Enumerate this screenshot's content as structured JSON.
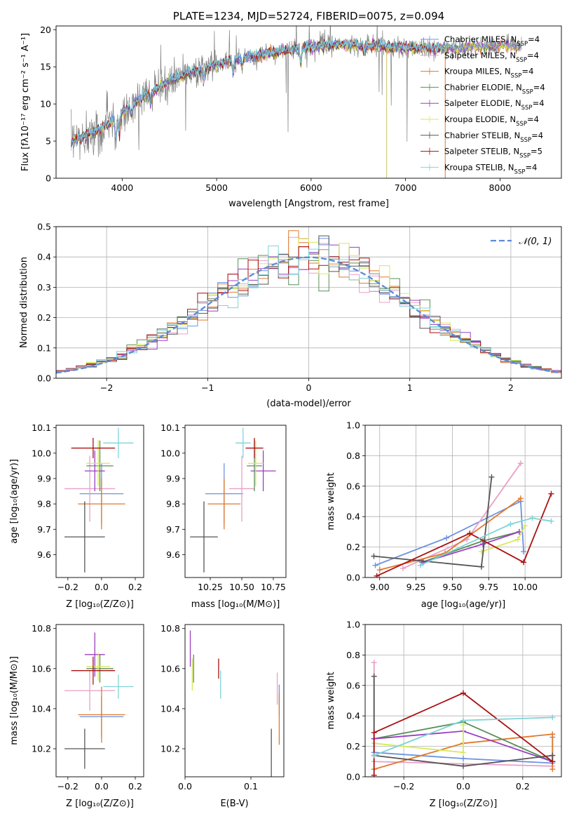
{
  "colors": {
    "Chabrier MILES": "#6f93e0",
    "Salpeter MILES": "#e8a0c8",
    "Kroupa MILES": "#e07a2a",
    "Chabrier ELODIE": "#5a8f5a",
    "Salpeter ELODIE": "#9b3fbf",
    "Kroupa ELODIE": "#d8e85a",
    "Chabrier STELIB": "#555555",
    "Salpeter STELIB": "#aa1111",
    "Kroupa STELIB": "#7fd4d8"
  },
  "chart_data": [
    {
      "id": "spectrum",
      "type": "line",
      "title": "PLATE=1234, MJD=52724, FIBERID=0075, z=0.094",
      "xlabel": "wavelength [Angstrom, rest frame]",
      "ylabel": "Flux [fλ10⁻¹⁷ erg cm⁻² s⁻¹ A⁻¹]",
      "xlim": [
        3300,
        8650
      ],
      "ylim": [
        0,
        20.5
      ],
      "xticks": [
        4000,
        5000,
        6000,
        7000,
        8000
      ],
      "yticks": [
        0,
        5,
        10,
        15,
        20
      ],
      "grid": false,
      "legend_position": "top-right",
      "legend": [
        {
          "model": "Chabrier MILES",
          "nssp": "4"
        },
        {
          "model": "Salpeter MILES",
          "nssp": "4"
        },
        {
          "model": "Kroupa MILES",
          "nssp": "4"
        },
        {
          "model": "Chabrier ELODIE",
          "nssp": "4"
        },
        {
          "model": "Salpeter ELODIE",
          "nssp": "4"
        },
        {
          "model": "Kroupa ELODIE",
          "nssp": "4"
        },
        {
          "model": "Chabrier STELIB",
          "nssp": "4"
        },
        {
          "model": "Salpeter STELIB",
          "nssp": "5"
        },
        {
          "model": "Kroupa STELIB",
          "nssp": "4"
        }
      ],
      "continuum": [
        [
          3450,
          4.8
        ],
        [
          3550,
          5.4
        ],
        [
          3650,
          6.0
        ],
        [
          3750,
          6.6
        ],
        [
          3850,
          7.3
        ],
        [
          3950,
          8.2
        ],
        [
          4050,
          9.3
        ],
        [
          4150,
          10.3
        ],
        [
          4250,
          11.1
        ],
        [
          4350,
          11.9
        ],
        [
          4450,
          12.7
        ],
        [
          4550,
          13.4
        ],
        [
          4700,
          14.2
        ],
        [
          4850,
          14.7
        ],
        [
          5000,
          15.3
        ],
        [
          5150,
          15.9
        ],
        [
          5300,
          16.2
        ],
        [
          5500,
          16.7
        ],
        [
          5700,
          17.1
        ],
        [
          5900,
          17.5
        ],
        [
          6100,
          17.8
        ],
        [
          6300,
          18.0
        ],
        [
          6500,
          17.9
        ],
        [
          6700,
          17.8
        ],
        [
          6900,
          17.6
        ],
        [
          7100,
          17.6
        ],
        [
          7300,
          17.5
        ],
        [
          7500,
          17.5
        ],
        [
          7700,
          17.7
        ],
        [
          7900,
          17.8
        ],
        [
          8100,
          17.9
        ],
        [
          8200,
          17.9
        ]
      ]
    },
    {
      "id": "residuals",
      "type": "histogram",
      "xlabel": "(data-model)/error",
      "ylabel": "Normed distribution",
      "xlim": [
        -2.5,
        2.5
      ],
      "ylim": [
        0,
        0.5
      ],
      "xticks": [
        -2,
        -1,
        0,
        1,
        2
      ],
      "yticks": [
        0.0,
        0.1,
        0.2,
        0.3,
        0.4,
        0.5
      ],
      "grid": true,
      "legend_position": "top-right",
      "legend_label": "𝒩(0, 1)",
      "bin_width": 0.1
    },
    {
      "id": "age-vs-Z",
      "type": "errorbar",
      "xlabel": "Z [log₁₀(Z/Z⊙)]",
      "ylabel": "age  [log₁₀(age/yr)]",
      "xlim": [
        -0.27,
        0.25
      ],
      "ylim": [
        9.51,
        10.11
      ],
      "xticks": [
        -0.2,
        0.0,
        0.2
      ],
      "yticks": [
        9.6,
        9.7,
        9.8,
        9.9,
        10.0,
        10.1
      ],
      "points": [
        {
          "model": "Chabrier MILES",
          "x": 0.0,
          "xerr": 0.13,
          "y": 9.84,
          "yerr": 0.12
        },
        {
          "model": "Salpeter MILES",
          "x": -0.07,
          "xerr": 0.15,
          "y": 9.86,
          "yerr": 0.13
        },
        {
          "model": "Kroupa MILES",
          "x": 0.0,
          "xerr": 0.14,
          "y": 9.8,
          "yerr": 0.1
        },
        {
          "model": "Chabrier ELODIE",
          "x": -0.01,
          "xerr": 0.08,
          "y": 9.95,
          "yerr": 0.1
        },
        {
          "model": "Salpeter ELODIE",
          "x": -0.04,
          "xerr": 0.06,
          "y": 9.93,
          "yerr": 0.08
        },
        {
          "model": "Kroupa ELODIE",
          "x": -0.02,
          "xerr": 0.07,
          "y": 9.96,
          "yerr": 0.09
        },
        {
          "model": "Chabrier STELIB",
          "x": -0.1,
          "xerr": 0.12,
          "y": 9.67,
          "yerr": 0.14
        },
        {
          "model": "Salpeter STELIB",
          "x": -0.05,
          "xerr": 0.13,
          "y": 10.02,
          "yerr": 0.04
        },
        {
          "model": "Kroupa STELIB",
          "x": 0.1,
          "xerr": 0.09,
          "y": 10.04,
          "yerr": 0.06
        }
      ]
    },
    {
      "id": "age-vs-mass",
      "type": "errorbar",
      "xlabel": "mass [log₁₀(M/M⊙)]",
      "ylabel": "",
      "xlim": [
        10.05,
        10.85
      ],
      "ylim": [
        9.51,
        10.11
      ],
      "xticks": [
        10.25,
        10.5,
        10.75
      ],
      "yticks": [
        9.6,
        9.7,
        9.8,
        9.9,
        10.0,
        10.1
      ],
      "points": [
        {
          "model": "Chabrier MILES",
          "x": 10.36,
          "xerr": 0.15,
          "y": 9.84,
          "yerr": 0.12
        },
        {
          "model": "Salpeter MILES",
          "x": 10.5,
          "xerr": 0.1,
          "y": 9.86,
          "yerr": 0.13
        },
        {
          "model": "Kroupa MILES",
          "x": 10.36,
          "xerr": 0.13,
          "y": 9.8,
          "yerr": 0.1
        },
        {
          "model": "Chabrier ELODIE",
          "x": 10.6,
          "xerr": 0.06,
          "y": 9.95,
          "yerr": 0.1
        },
        {
          "model": "Salpeter ELODIE",
          "x": 10.67,
          "xerr": 0.1,
          "y": 9.93,
          "yerr": 0.08
        },
        {
          "model": "Kroupa ELODIE",
          "x": 10.61,
          "xerr": 0.06,
          "y": 9.96,
          "yerr": 0.09
        },
        {
          "model": "Chabrier STELIB",
          "x": 10.2,
          "xerr": 0.11,
          "y": 9.67,
          "yerr": 0.14
        },
        {
          "model": "Salpeter STELIB",
          "x": 10.6,
          "xerr": 0.07,
          "y": 10.02,
          "yerr": 0.04
        },
        {
          "model": "Kroupa STELIB",
          "x": 10.51,
          "xerr": 0.06,
          "y": 10.04,
          "yerr": 0.06
        }
      ]
    },
    {
      "id": "weight-vs-age",
      "type": "line",
      "xlabel": "age  [log₁₀(age/yr)]",
      "ylabel": "mass weight",
      "xlim": [
        8.9,
        10.25
      ],
      "ylim": [
        0,
        1.0
      ],
      "xticks": [
        9.0,
        9.25,
        9.5,
        9.75,
        10.0
      ],
      "yticks": [
        0.0,
        0.2,
        0.4,
        0.6,
        0.8,
        1.0
      ],
      "grid": true,
      "series": [
        {
          "model": "Chabrier MILES",
          "x": [
            8.97,
            9.46,
            9.97,
            9.99
          ],
          "y": [
            0.08,
            0.26,
            0.5,
            0.17
          ]
        },
        {
          "model": "Salpeter MILES",
          "x": [
            9.16,
            9.6,
            9.97
          ],
          "y": [
            0.06,
            0.25,
            0.75
          ]
        },
        {
          "model": "Kroupa MILES",
          "x": [
            9.0,
            9.45,
            9.97
          ],
          "y": [
            0.05,
            0.16,
            0.52
          ]
        },
        {
          "model": "Chabrier ELODIE",
          "x": [
            9.29,
            9.71,
            9.96
          ],
          "y": [
            0.1,
            0.24,
            0.3
          ]
        },
        {
          "model": "Salpeter ELODIE",
          "x": [
            9.3,
            9.71,
            9.96
          ],
          "y": [
            0.1,
            0.22,
            0.3
          ]
        },
        {
          "model": "Kroupa ELODIE",
          "x": [
            9.7,
            9.95,
            10.0
          ],
          "y": [
            0.17,
            0.25,
            0.34
          ]
        },
        {
          "model": "Chabrier STELIB",
          "x": [
            8.96,
            9.7,
            9.77
          ],
          "y": [
            0.14,
            0.07,
            0.66
          ]
        },
        {
          "model": "Salpeter STELIB",
          "x": [
            8.98,
            9.62,
            9.99,
            10.18
          ],
          "y": [
            0.01,
            0.29,
            0.1,
            0.55
          ]
        },
        {
          "model": "Kroupa STELIB",
          "x": [
            9.28,
            9.9,
            10.05,
            10.18
          ],
          "y": [
            0.08,
            0.35,
            0.39,
            0.37
          ]
        }
      ]
    },
    {
      "id": "mass-vs-Z",
      "type": "errorbar",
      "xlabel": "Z [log₁₀(Z/Z⊙)]",
      "ylabel": "mass [log₁₀(M/M⊙)]",
      "xlim": [
        -0.27,
        0.25
      ],
      "ylim": [
        10.06,
        10.82
      ],
      "xticks": [
        -0.2,
        0.0,
        0.2
      ],
      "yticks": [
        10.2,
        10.4,
        10.6,
        10.8
      ],
      "points": [
        {
          "model": "Chabrier MILES",
          "x": 0.0,
          "xerr": 0.13,
          "y": 10.36,
          "yerr": 0.1
        },
        {
          "model": "Salpeter MILES",
          "x": -0.07,
          "xerr": 0.15,
          "y": 10.49,
          "yerr": 0.1
        },
        {
          "model": "Kroupa MILES",
          "x": 0.0,
          "xerr": 0.14,
          "y": 10.37,
          "yerr": 0.14
        },
        {
          "model": "Chabrier ELODIE",
          "x": -0.01,
          "xerr": 0.08,
          "y": 10.6,
          "yerr": 0.07
        },
        {
          "model": "Salpeter ELODIE",
          "x": -0.04,
          "xerr": 0.06,
          "y": 10.67,
          "yerr": 0.11
        },
        {
          "model": "Kroupa ELODIE",
          "x": -0.02,
          "xerr": 0.07,
          "y": 10.61,
          "yerr": 0.07
        },
        {
          "model": "Chabrier STELIB",
          "x": -0.1,
          "xerr": 0.12,
          "y": 10.2,
          "yerr": 0.1
        },
        {
          "model": "Salpeter STELIB",
          "x": -0.05,
          "xerr": 0.13,
          "y": 10.59,
          "yerr": 0.07
        },
        {
          "model": "Kroupa STELIB",
          "x": 0.1,
          "xerr": 0.09,
          "y": 10.51,
          "yerr": 0.06
        }
      ]
    },
    {
      "id": "mass-vs-ebv",
      "type": "errorbar",
      "xlabel": "E(B-V)",
      "ylabel": "",
      "xlim": [
        0,
        0.15
      ],
      "ylim": [
        10.06,
        10.82
      ],
      "xticks": [
        0.0,
        0.1
      ],
      "yticks": [
        10.2,
        10.4,
        10.6,
        10.8
      ],
      "points": [
        {
          "model": "Chabrier MILES",
          "x": 0.143,
          "y": 10.44,
          "yerr": 0.08
        },
        {
          "model": "Salpeter MILES",
          "x": 0.14,
          "y": 10.5,
          "yerr": 0.08
        },
        {
          "model": "Kroupa MILES",
          "x": 0.143,
          "y": 10.35,
          "yerr": 0.13
        },
        {
          "model": "Chabrier ELODIE",
          "x": 0.013,
          "y": 10.6,
          "yerr": 0.07
        },
        {
          "model": "Salpeter ELODIE",
          "x": 0.008,
          "y": 10.7,
          "yerr": 0.09
        },
        {
          "model": "Kroupa ELODIE",
          "x": 0.011,
          "y": 10.57,
          "yerr": 0.08
        },
        {
          "model": "Chabrier STELIB",
          "x": 0.131,
          "y": 10.16,
          "yerr": 0.14
        },
        {
          "model": "Salpeter STELIB",
          "x": 0.051,
          "y": 10.6,
          "yerr": 0.05
        },
        {
          "model": "Kroupa STELIB",
          "x": 0.054,
          "y": 10.52,
          "yerr": 0.07
        }
      ]
    },
    {
      "id": "weight-vs-Z",
      "type": "line",
      "xlabel": "Z [log₁₀(Z/Z⊙)]",
      "ylabel": "mass weight",
      "xlim": [
        -0.33,
        0.33
      ],
      "ylim": [
        0,
        1.0
      ],
      "xticks": [
        -0.2,
        0.0,
        0.2
      ],
      "yticks": [
        0.0,
        0.2,
        0.4,
        0.6,
        0.8,
        1.0
      ],
      "grid": true,
      "series": [
        {
          "model": "Chabrier MILES",
          "x": [
            -0.3,
            0.0,
            0.3,
            0.3
          ],
          "y": [
            0.16,
            0.12,
            0.09,
            0.26
          ]
        },
        {
          "model": "Salpeter MILES",
          "x": [
            -0.3,
            -0.3,
            0.3
          ],
          "y": [
            0.75,
            0.1,
            0.07
          ]
        },
        {
          "model": "Kroupa MILES",
          "x": [
            -0.3,
            0.0,
            0.3,
            0.3
          ],
          "y": [
            0.05,
            0.22,
            0.28,
            0.05
          ]
        },
        {
          "model": "Chabrier ELODIE",
          "x": [
            -0.3,
            0.0,
            0.3
          ],
          "y": [
            0.25,
            0.36,
            0.1
          ]
        },
        {
          "model": "Salpeter ELODIE",
          "x": [
            -0.3,
            0.0,
            0.3
          ],
          "y": [
            0.25,
            0.3,
            0.1
          ]
        },
        {
          "model": "Kroupa ELODIE",
          "x": [
            -0.3,
            0.0,
            0.0
          ],
          "y": [
            0.22,
            0.16,
            0.34
          ]
        },
        {
          "model": "Chabrier STELIB",
          "x": [
            -0.3,
            -0.3,
            0.0,
            0.3,
            0.3
          ],
          "y": [
            0.66,
            0.14,
            0.07,
            0.14,
            0.1
          ]
        },
        {
          "model": "Salpeter STELIB",
          "x": [
            -0.3,
            -0.3,
            0.0,
            0.3
          ],
          "y": [
            0.01,
            0.29,
            0.55,
            0.1
          ]
        },
        {
          "model": "Kroupa STELIB",
          "x": [
            -0.3,
            0.0,
            0.3
          ],
          "y": [
            0.14,
            0.37,
            0.39
          ]
        }
      ]
    }
  ]
}
